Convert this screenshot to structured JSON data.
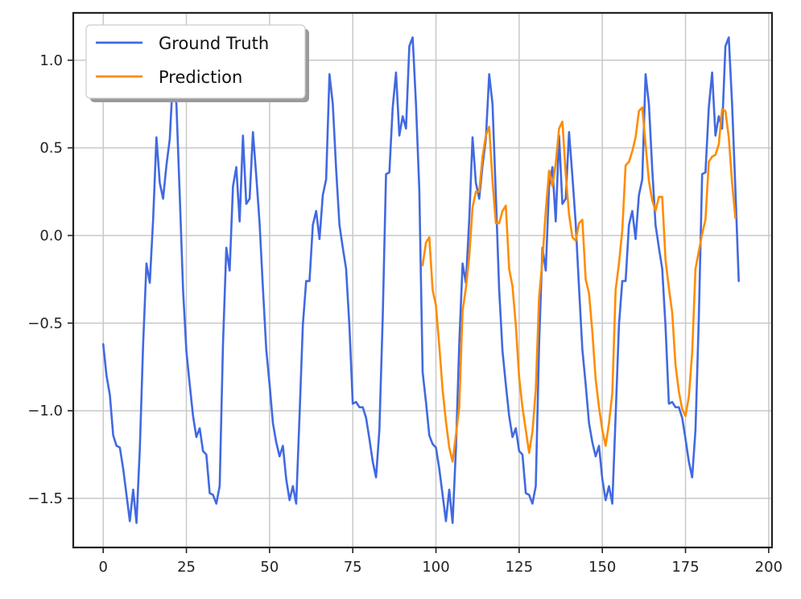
{
  "chart_data": {
    "type": "line",
    "title": "",
    "xlabel": "",
    "ylabel": "",
    "xlim": [
      -9,
      201
    ],
    "ylim": [
      -1.78,
      1.27
    ],
    "x_ticks": [
      0,
      25,
      50,
      75,
      100,
      125,
      150,
      175,
      200
    ],
    "x_tick_labels": [
      "0",
      "25",
      "50",
      "75",
      "100",
      "125",
      "150",
      "175",
      "200"
    ],
    "y_ticks": [
      -1.5,
      -1.0,
      -0.5,
      0.0,
      0.5,
      1.0
    ],
    "y_tick_labels": [
      "−1.5",
      "−1.0",
      "−0.5",
      "0.0",
      "0.5",
      "1.0"
    ],
    "grid": true,
    "legend_position": "upper-left",
    "series": [
      {
        "name": "Ground Truth",
        "color": "#4169e1",
        "x_start": 0,
        "values": [
          -0.62,
          -0.8,
          -0.91,
          -1.14,
          -1.2,
          -1.21,
          -1.33,
          -1.48,
          -1.63,
          -1.45,
          -1.64,
          -1.22,
          -0.62,
          -0.16,
          -0.27,
          0.09,
          0.56,
          0.3,
          0.21,
          0.4,
          0.55,
          0.92,
          0.75,
          0.23,
          -0.31,
          -0.66,
          -0.85,
          -1.03,
          -1.15,
          -1.1,
          -1.23,
          -1.25,
          -1.47,
          -1.48,
          -1.53,
          -1.43,
          -0.62,
          -0.07,
          -0.2,
          0.28,
          0.39,
          0.08,
          0.57,
          0.18,
          0.21,
          0.59,
          0.34,
          0.07,
          -0.3,
          -0.65,
          -0.85,
          -1.07,
          -1.18,
          -1.26,
          -1.2,
          -1.39,
          -1.51,
          -1.43,
          -1.53,
          -1.03,
          -0.51,
          -0.26,
          -0.26,
          0.06,
          0.14,
          -0.02,
          0.23,
          0.32,
          0.92,
          0.75,
          0.38,
          0.06,
          -0.07,
          -0.19,
          -0.52,
          -0.96,
          -0.95,
          -0.98,
          -0.98,
          -1.04,
          -1.16,
          -1.29,
          -1.38,
          -1.11,
          -0.47,
          0.35,
          0.36,
          0.73,
          0.93,
          0.57,
          0.68,
          0.61,
          1.08,
          1.13,
          0.75,
          0.26,
          -0.78,
          -0.95,
          -1.14,
          -1.19,
          -1.21,
          -1.33,
          -1.48,
          -1.63,
          -1.45,
          -1.64,
          -1.22,
          -0.62,
          -0.16,
          -0.27,
          0.09,
          0.56,
          0.3,
          0.21,
          0.4,
          0.55,
          0.92,
          0.75,
          0.23,
          -0.31,
          -0.66,
          -0.85,
          -1.03,
          -1.15,
          -1.1,
          -1.23,
          -1.25,
          -1.47,
          -1.48,
          -1.53,
          -1.43,
          -0.62,
          -0.07,
          -0.2,
          0.28,
          0.39,
          0.08,
          0.57,
          0.18,
          0.21,
          0.59,
          0.34,
          0.07,
          -0.3,
          -0.65,
          -0.85,
          -1.07,
          -1.18,
          -1.26,
          -1.2,
          -1.39,
          -1.51,
          -1.43,
          -1.53,
          -1.03,
          -0.51,
          -0.26,
          -0.26,
          0.06,
          0.14,
          -0.02,
          0.23,
          0.32,
          0.92,
          0.75,
          0.38,
          0.06,
          -0.07,
          -0.19,
          -0.52,
          -0.96,
          -0.95,
          -0.98,
          -0.98,
          -1.04,
          -1.16,
          -1.29,
          -1.38,
          -1.11,
          -0.47,
          0.35,
          0.36,
          0.73,
          0.93,
          0.57,
          0.68,
          0.61,
          1.08,
          1.13,
          0.75,
          0.26,
          -0.26
        ]
      },
      {
        "name": "Prediction",
        "color": "#ff8c00",
        "x_start": 96,
        "values": [
          -0.17,
          -0.04,
          -0.01,
          -0.31,
          -0.4,
          -0.63,
          -0.88,
          -1.06,
          -1.21,
          -1.29,
          -1.14,
          -0.98,
          -0.43,
          -0.3,
          -0.12,
          0.16,
          0.25,
          0.25,
          0.45,
          0.57,
          0.62,
          0.31,
          0.07,
          0.07,
          0.14,
          0.17,
          -0.19,
          -0.29,
          -0.51,
          -0.81,
          -0.98,
          -1.11,
          -1.24,
          -1.12,
          -0.88,
          -0.35,
          -0.14,
          0.14,
          0.37,
          0.28,
          0.41,
          0.61,
          0.65,
          0.35,
          0.12,
          -0.01,
          -0.03,
          0.07,
          0.09,
          -0.25,
          -0.33,
          -0.55,
          -0.82,
          -0.98,
          -1.11,
          -1.2,
          -1.07,
          -0.9,
          -0.31,
          -0.16,
          0.03,
          0.4,
          0.42,
          0.48,
          0.56,
          0.71,
          0.73,
          0.52,
          0.31,
          0.2,
          0.14,
          0.22,
          0.22,
          -0.14,
          -0.3,
          -0.44,
          -0.74,
          -0.89,
          -0.99,
          -1.03,
          -0.92,
          -0.67,
          -0.19,
          -0.09,
          0.01,
          0.09,
          0.42,
          0.45,
          0.46,
          0.52,
          0.72,
          0.71,
          0.56,
          0.3,
          0.1
        ]
      }
    ]
  }
}
